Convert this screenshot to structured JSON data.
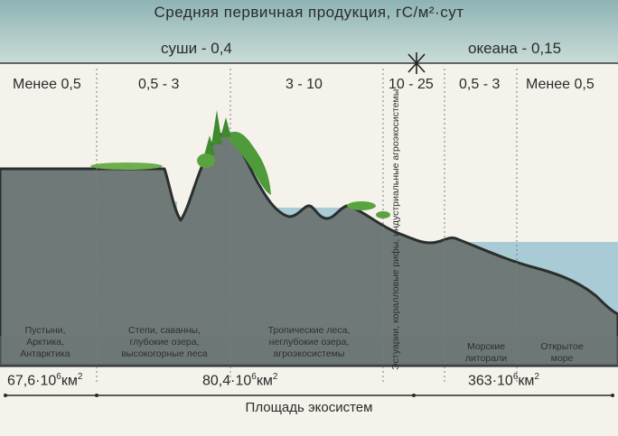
{
  "title": "Средняя первичная продукция, гС/м²·сут",
  "land_average": "суши - 0,4",
  "ocean_average": "океана - 0,15",
  "zones": [
    {
      "range": "Менее 0,5",
      "description": "Пустыни, Арктика, Антарктика"
    },
    {
      "range": "0,5 - 3",
      "description": "Степи, саванны, глубокие озера, высокогорные леса"
    },
    {
      "range": "3 - 10",
      "description": "Тропические леса, неглубокие озера, агроэкосистемы"
    },
    {
      "range": "10 - 25",
      "description": "Эстуарии, коралловые рифы, индустриальные агроэкосистемы"
    },
    {
      "range": "0,5 - 3",
      "description": "Морские литорали"
    },
    {
      "range": "Менее 0,5",
      "description": "Открытое море"
    }
  ],
  "areas": [
    {
      "value": "67,6·10",
      "exp": "6",
      "unit": "км",
      "unit_exp": "2"
    },
    {
      "value": "80,4·10",
      "exp": "6",
      "unit": "км",
      "unit_exp": "2"
    },
    {
      "value": "363·10",
      "exp": "6",
      "unit": "км",
      "unit_exp": "2"
    }
  ],
  "x_axis_label": "Площадь экосистем",
  "colors": {
    "header_bg": "#9fbfbf",
    "land": "#6f7a78",
    "water": "#a9cbd5",
    "vegetation": "#4f9a3a",
    "text": "#2b2b2b"
  }
}
